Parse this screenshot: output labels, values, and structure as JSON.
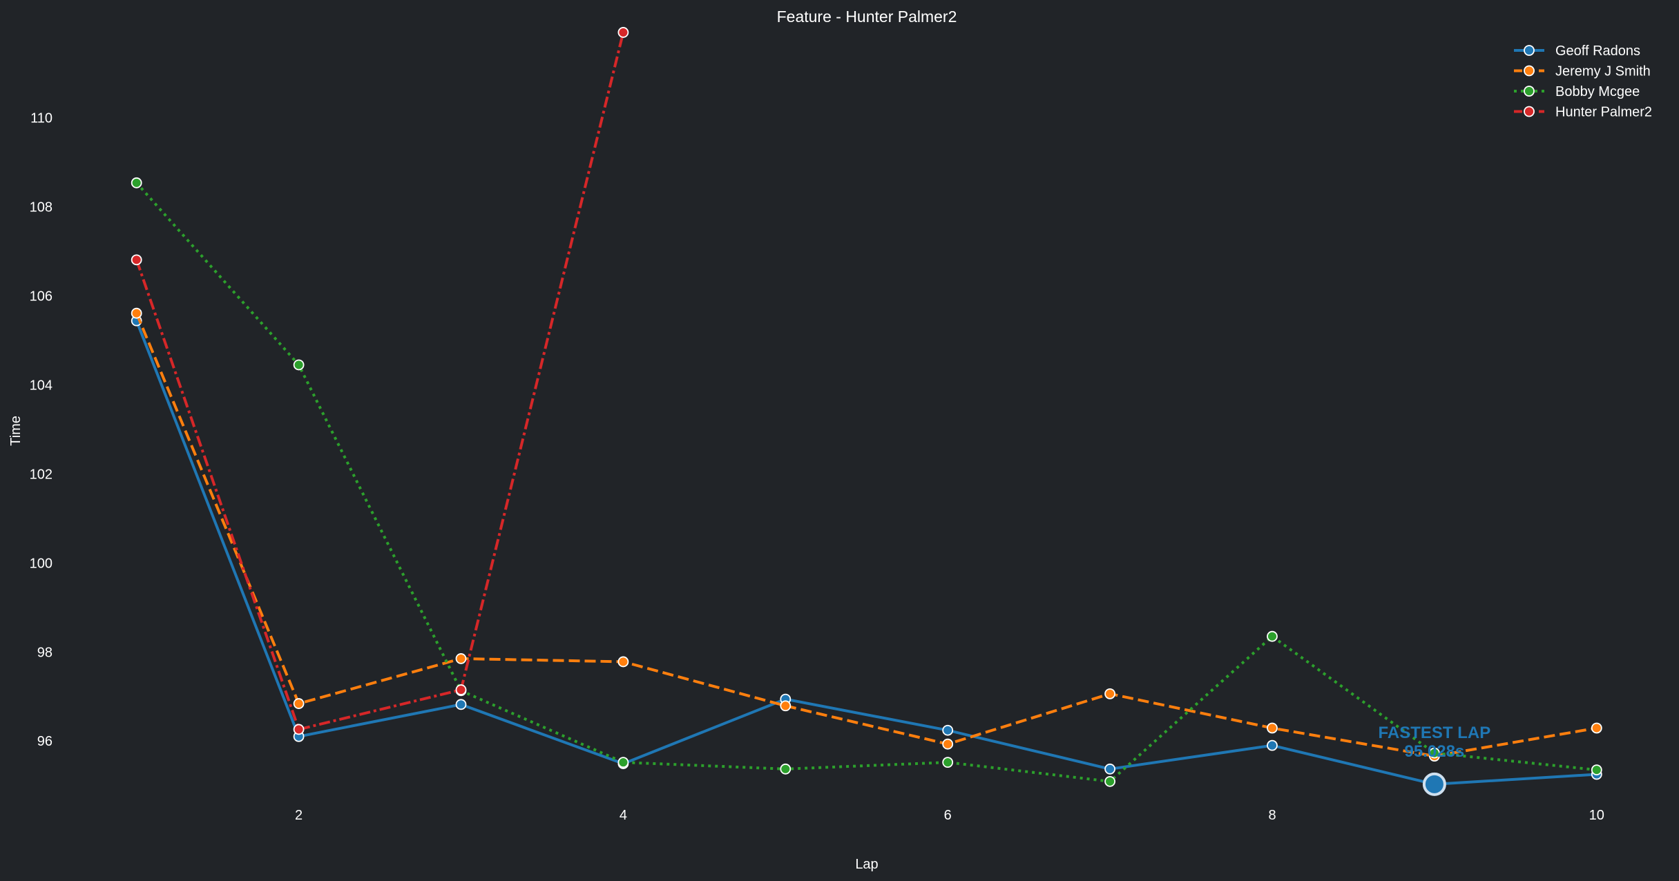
{
  "chart_data": {
    "type": "line",
    "title": "Feature - Hunter Palmer2",
    "xlabel": "Lap",
    "ylabel": "Time",
    "xlim": [
      1,
      10
    ],
    "ylim": [
      94.25,
      111.95
    ],
    "xticks": [
      2,
      4,
      6,
      8,
      10
    ],
    "yticks": [
      96,
      98,
      100,
      102,
      104,
      106,
      108,
      110
    ],
    "grid": false,
    "legend_placement": "top-right",
    "series": [
      {
        "name": "Geoff Radons",
        "color": "#1f77b4",
        "dash": "solid",
        "x": [
          1,
          2,
          3,
          4,
          5,
          6,
          7,
          8,
          9,
          10
        ],
        "values": [
          105.44,
          96.1,
          96.82,
          95.49,
          96.94,
          96.24,
          95.37,
          95.9,
          95.028,
          95.25
        ]
      },
      {
        "name": "Jeremy J Smith",
        "color": "#ff7f0e",
        "dash": "dashed",
        "x": [
          1,
          2,
          3,
          4,
          5,
          6,
          7,
          8,
          9,
          10
        ],
        "values": [
          105.61,
          96.84,
          97.85,
          97.78,
          96.79,
          95.93,
          97.06,
          96.29,
          95.66,
          96.29
        ]
      },
      {
        "name": "Bobby Mcgee",
        "color": "#2ca02c",
        "dash": "dotted",
        "x": [
          1,
          2,
          3,
          4,
          5,
          6,
          7,
          8,
          9,
          10
        ],
        "values": [
          108.54,
          104.45,
          97.13,
          95.52,
          95.37,
          95.52,
          95.09,
          98.35,
          95.73,
          95.35
        ]
      },
      {
        "name": "Hunter Palmer2",
        "color": "#d62728",
        "dash": "dashdot",
        "x": [
          1,
          2,
          3,
          4
        ],
        "values": [
          106.81,
          96.26,
          97.15,
          111.92
        ]
      }
    ],
    "annotation": {
      "label": "FASTEST LAP",
      "value_text": "95.028s",
      "lap": 9,
      "time": 95.028,
      "series": "Geoff Radons",
      "color": "#1f77b4"
    }
  }
}
